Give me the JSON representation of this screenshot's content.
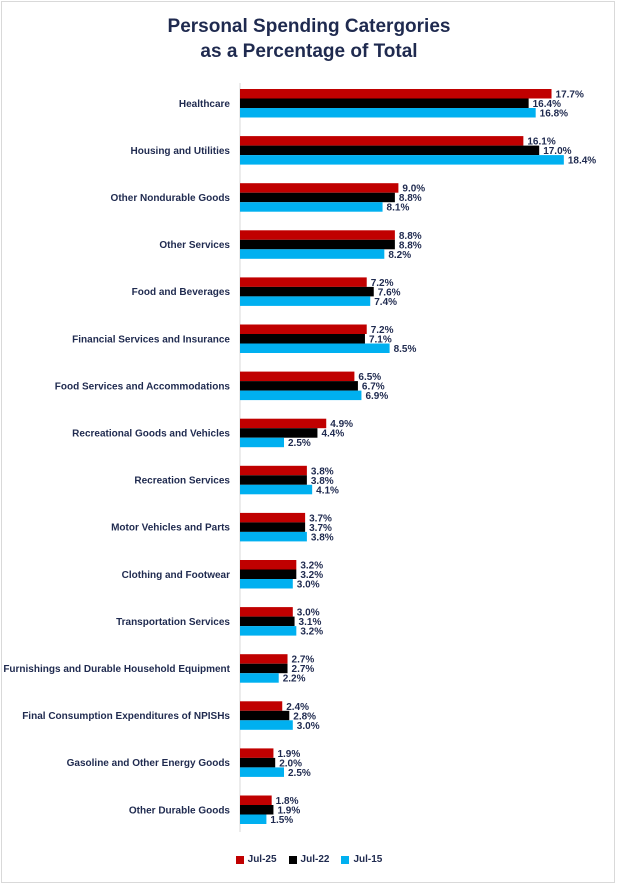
{
  "chart_data": {
    "type": "bar",
    "orientation": "horizontal",
    "title": "Personal Spending Catergories as a Percentage of Total",
    "title_lines": [
      "Personal Spending Catergories",
      "as a Percentage of Total"
    ],
    "categories": [
      "Healthcare",
      "Housing and Utilities",
      "Other Nondurable Goods",
      "Other Services",
      "Food and Beverages",
      "Financial Services and Insurance",
      "Food Services and Accommodations",
      "Recreational Goods and Vehicles",
      "Recreation Services",
      "Motor Vehicles and Parts",
      "Clothing and Footwear",
      "Transportation Services",
      "Furnishings and Durable Household Equipment",
      "Final Consumption Expenditures of NPISHs",
      "Gasoline and Other Energy Goods",
      "Other Durable Goods"
    ],
    "series": [
      {
        "name": "Jul-25",
        "color": "#c00000",
        "values": [
          17.7,
          16.1,
          9.0,
          8.8,
          7.2,
          7.2,
          6.5,
          4.9,
          3.8,
          3.7,
          3.2,
          3.0,
          2.7,
          2.4,
          1.9,
          1.8
        ]
      },
      {
        "name": "Jul-22",
        "color": "#000000",
        "values": [
          16.4,
          17.0,
          8.8,
          8.8,
          7.6,
          7.1,
          6.7,
          4.4,
          3.8,
          3.7,
          3.2,
          3.1,
          2.7,
          2.8,
          2.0,
          1.9
        ]
      },
      {
        "name": "Jul-15",
        "color": "#00b0f0",
        "values": [
          16.8,
          18.4,
          8.1,
          8.2,
          7.4,
          8.5,
          6.9,
          2.5,
          4.1,
          3.8,
          3.0,
          3.2,
          2.2,
          3.0,
          2.5,
          1.5
        ]
      }
    ],
    "value_suffix": "%",
    "xlim": [
      0,
      20
    ],
    "grid": false,
    "legend_position": "bottom"
  }
}
